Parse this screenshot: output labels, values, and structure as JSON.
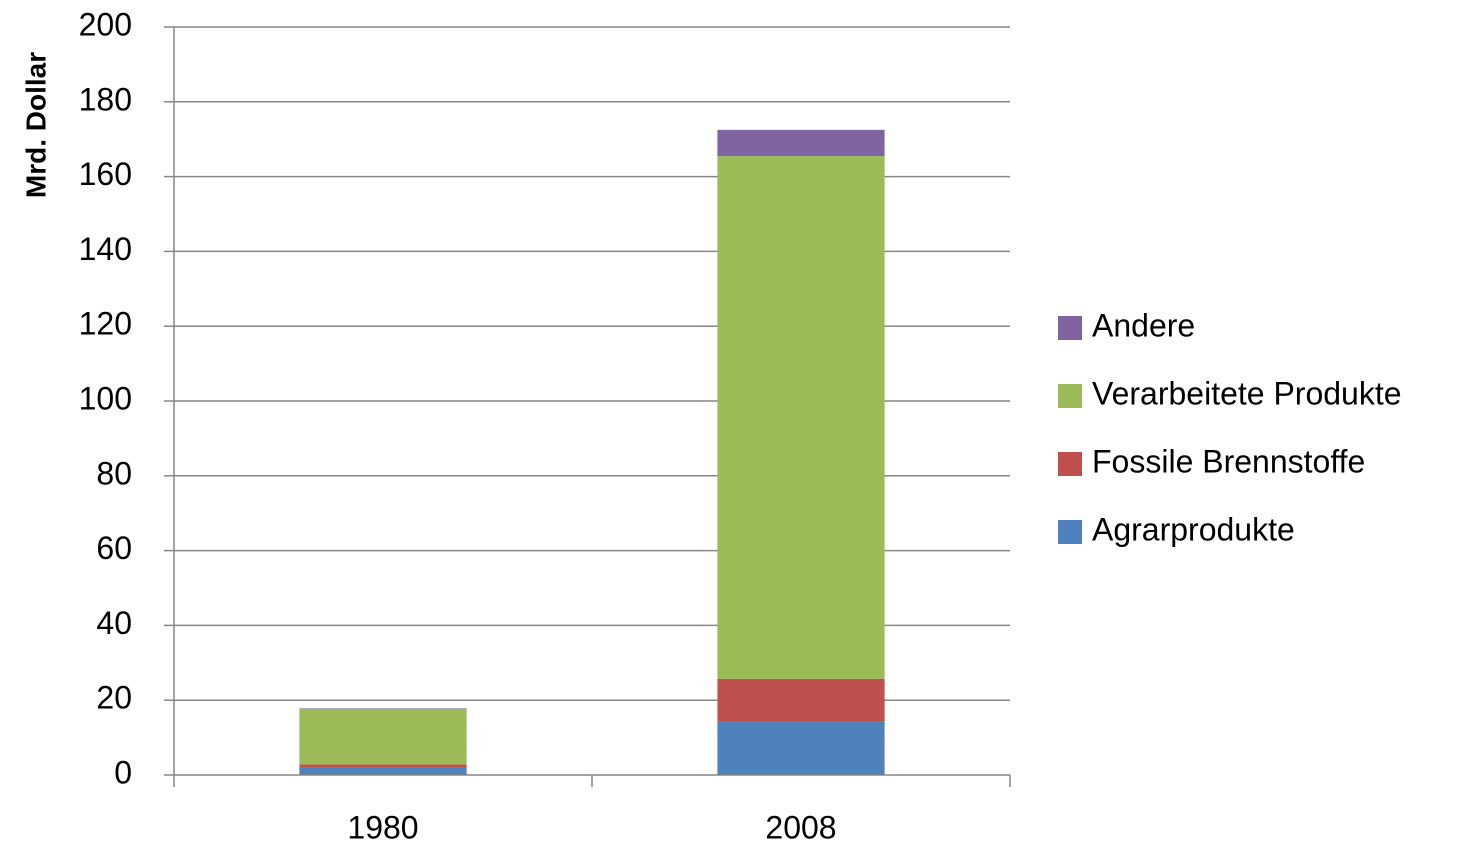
{
  "chart_data": {
    "type": "stacked_bar",
    "y_label": "Mrd. Dollar",
    "categories": [
      "1980",
      "2008"
    ],
    "series": [
      {
        "name": "Agrarprodukte",
        "color": "#4f81bd",
        "values": [
          1.9,
          14.2
        ]
      },
      {
        "name": "Fossile Brennstoffe",
        "color": "#c0504d",
        "values": [
          0.9,
          11.5
        ]
      },
      {
        "name": "Verarbeitete Produkte",
        "color": "#9bbb59",
        "values": [
          14.8,
          139.8
        ]
      },
      {
        "name": "Andere",
        "color": "#8064a2",
        "values": [
          0.2,
          7
        ]
      }
    ],
    "ylim": [
      0,
      200
    ],
    "yticks": [
      0,
      20,
      40,
      60,
      80,
      100,
      120,
      140,
      160,
      180,
      200
    ],
    "grid": true,
    "legend": "right"
  }
}
